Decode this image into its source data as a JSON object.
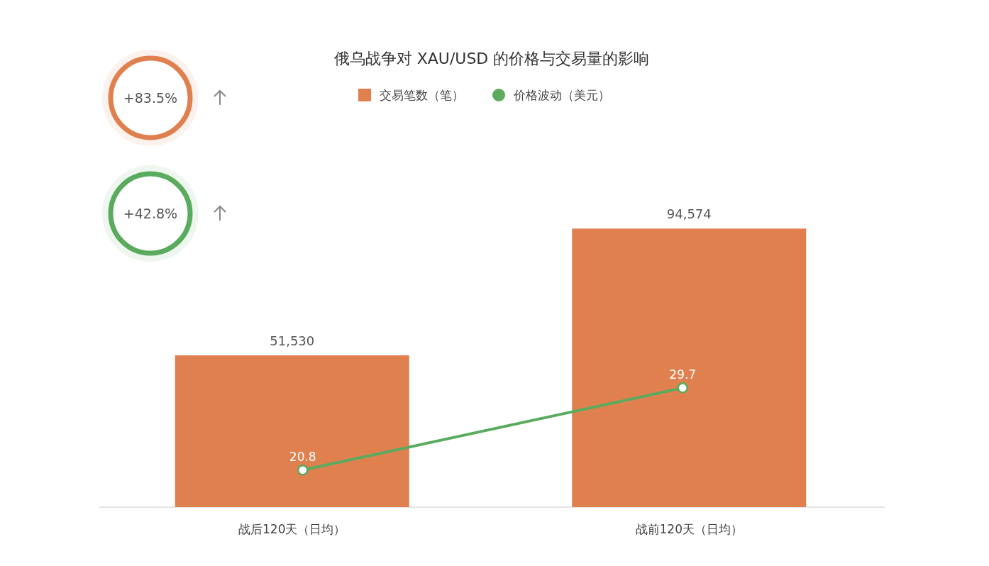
{
  "chart_data": {
    "type": "bar",
    "title": "俄乌战争对 XAU/USD 的价格与交易量的影响",
    "categories": [
      "战后120天（日均）",
      "战前120天（日均）"
    ],
    "series": [
      {
        "name": "交易笔数（笔）",
        "color": "#e0804f",
        "values": [
          51530,
          94574
        ],
        "value_labels": [
          "51,530",
          "94,574"
        ]
      },
      {
        "name": "价格波动（美元）",
        "type": "line",
        "axis": "y2",
        "color": "#5aab5e",
        "marker": "circle",
        "values": [
          20.8,
          29.7
        ]
      }
    ],
    "data_labels": true,
    "legend": "top",
    "grid": false,
    "annotations": [
      "+83.5%",
      "+42.8%"
    ]
  }
}
